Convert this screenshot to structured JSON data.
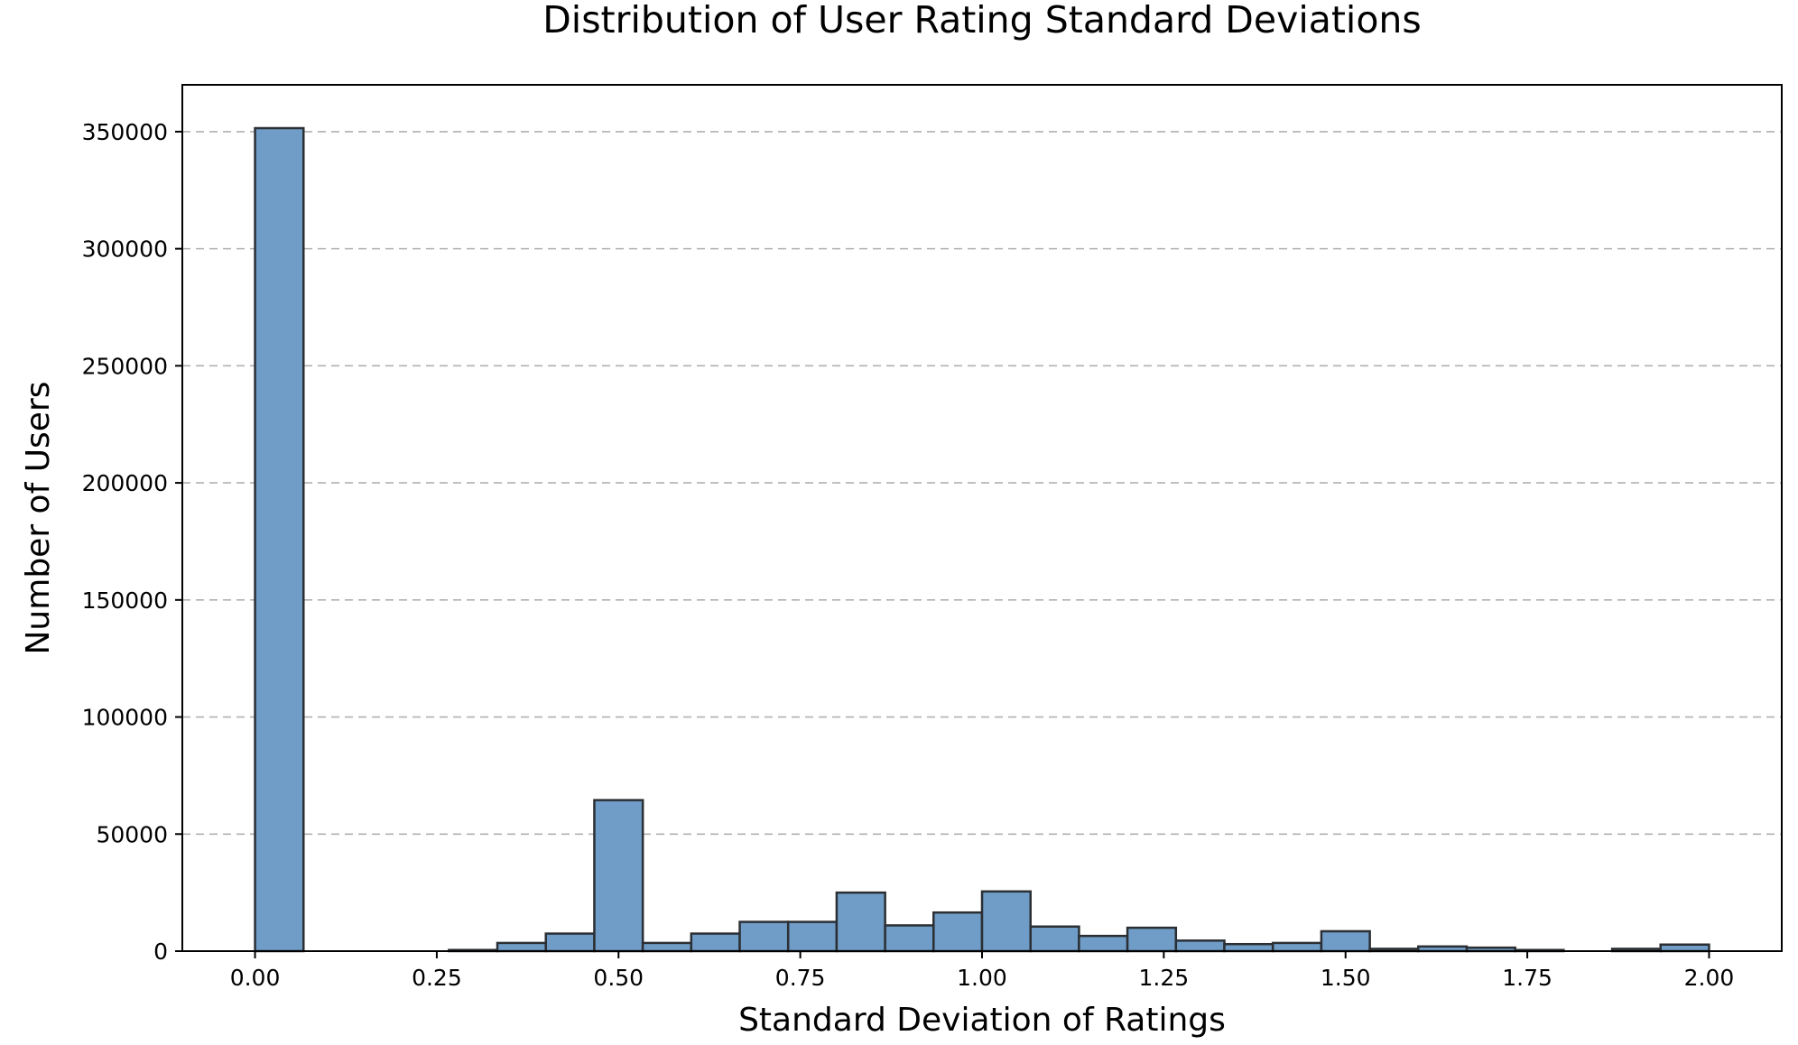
{
  "chart_data": {
    "type": "bar",
    "title": "Distribution of User Rating Standard Deviations",
    "xlabel": "Standard Deviation of Ratings",
    "ylabel": "Number of Users",
    "xlim": [
      -0.1,
      2.1
    ],
    "ylim": [
      0,
      370000
    ],
    "grid": "y-dashed",
    "bar_color": "#6f9dc8",
    "edge_color": "#2b2f33",
    "x_ticks": [
      "0.00",
      "0.25",
      "0.50",
      "0.75",
      "1.00",
      "1.25",
      "1.50",
      "1.75",
      "2.00"
    ],
    "y_ticks": [
      "0",
      "50000",
      "100000",
      "150000",
      "200000",
      "250000",
      "300000",
      "350000"
    ],
    "bin_width": 0.0667,
    "bin_starts": [
      0.0,
      0.0667,
      0.1333,
      0.2,
      0.2667,
      0.3333,
      0.4,
      0.4667,
      0.5333,
      0.6,
      0.6667,
      0.7333,
      0.8,
      0.8667,
      0.9333,
      1.0,
      1.0667,
      1.1333,
      1.2,
      1.2667,
      1.3333,
      1.4,
      1.4667,
      1.5333,
      1.6,
      1.6667,
      1.7333,
      1.8,
      1.8667,
      1.9333
    ],
    "values": [
      351500,
      0,
      0,
      0,
      500,
      3500,
      7500,
      64500,
      3500,
      7500,
      12500,
      12500,
      25000,
      11000,
      16500,
      25500,
      10500,
      6500,
      10000,
      4500,
      3000,
      3500,
      8500,
      1000,
      2000,
      1500,
      500,
      0,
      1000,
      2800
    ]
  }
}
